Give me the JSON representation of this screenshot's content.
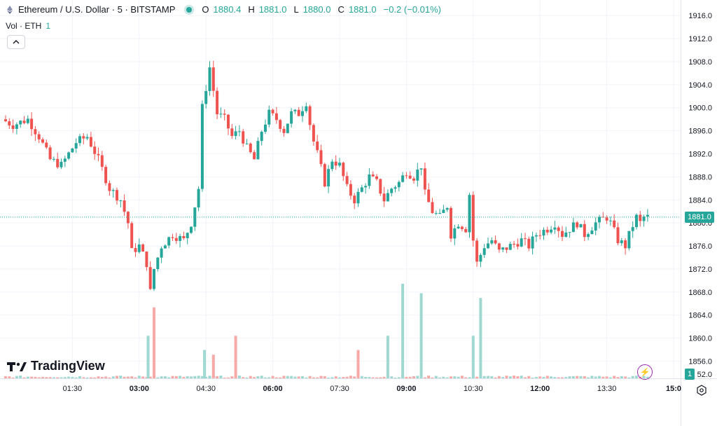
{
  "header": {
    "symbol_title": "Ethereum / U.S. Dollar · 5 · BITSTAMP",
    "open_label": "O",
    "open_value": "1880.4",
    "high_label": "H",
    "high_value": "1881.0",
    "low_label": "L",
    "low_value": "1880.0",
    "close_label": "C",
    "close_value": "1881.0",
    "change": "−0.2 (−0.01%)"
  },
  "volume": {
    "label": "Vol · ETH",
    "value": "1"
  },
  "logo_text": "TradingView",
  "price_tag": "1881.0",
  "vol_tag": "1",
  "volume_axis_label": "52.0",
  "colors": {
    "up": "#26a69a",
    "down": "#ef5350",
    "up_vol": "#9fd8d1",
    "down_vol": "#f7a9a7",
    "accent": "#9c27b0"
  },
  "icons": [
    "ethereum-icon",
    "chevron-up-icon",
    "tradingview-logo-icon",
    "flash-icon",
    "settings-icon"
  ],
  "chart_data": {
    "type": "candlestick",
    "y_ticks": [
      "1916.0",
      "1912.0",
      "1908.0",
      "1904.0",
      "1900.0",
      "1896.0",
      "1892.0",
      "1888.0",
      "1884.0",
      "1880.0",
      "1876.0",
      "1872.0",
      "1868.0",
      "1864.0",
      "1860.0",
      "1856.0"
    ],
    "y_tick_values": [
      1916,
      1912,
      1908,
      1904,
      1900,
      1896,
      1892,
      1888,
      1884,
      1880,
      1876,
      1872,
      1868,
      1864,
      1860,
      1856
    ],
    "ylim": [
      1853.5,
      1917
    ],
    "x_ticks": [
      {
        "label": "01:30",
        "major": false,
        "t": 90
      },
      {
        "label": "03:00",
        "major": true,
        "t": 180
      },
      {
        "label": "04:30",
        "major": false,
        "t": 270
      },
      {
        "label": "06:00",
        "major": true,
        "t": 360
      },
      {
        "label": "07:30",
        "major": false,
        "t": 450
      },
      {
        "label": "09:00",
        "major": true,
        "t": 540
      },
      {
        "label": "10:30",
        "major": false,
        "t": 630
      },
      {
        "label": "12:00",
        "major": true,
        "t": 720
      },
      {
        "label": "13:30",
        "major": false,
        "t": 810
      },
      {
        "label": "15:0",
        "major": true,
        "t": 900
      }
    ],
    "x_minutes_range": [
      0,
      900
    ],
    "last_price": 1881.0,
    "key_points": [
      {
        "t": 0,
        "p": 1898
      },
      {
        "t": 15,
        "p": 1897
      },
      {
        "t": 35,
        "p": 1898
      },
      {
        "t": 50,
        "p": 1895
      },
      {
        "t": 65,
        "p": 1891
      },
      {
        "t": 80,
        "p": 1890
      },
      {
        "t": 100,
        "p": 1894
      },
      {
        "t": 115,
        "p": 1895
      },
      {
        "t": 130,
        "p": 1891
      },
      {
        "t": 145,
        "p": 1886
      },
      {
        "t": 160,
        "p": 1884
      },
      {
        "t": 170,
        "p": 1880
      },
      {
        "t": 175,
        "p": 1875
      },
      {
        "t": 185,
        "p": 1876
      },
      {
        "t": 195,
        "p": 1873
      },
      {
        "t": 200,
        "p": 1868
      },
      {
        "t": 205,
        "p": 1872
      },
      {
        "t": 215,
        "p": 1876
      },
      {
        "t": 230,
        "p": 1878
      },
      {
        "t": 245,
        "p": 1877
      },
      {
        "t": 255,
        "p": 1880
      },
      {
        "t": 265,
        "p": 1886
      },
      {
        "t": 270,
        "p": 1900
      },
      {
        "t": 280,
        "p": 1907
      },
      {
        "t": 290,
        "p": 1899
      },
      {
        "t": 300,
        "p": 1898
      },
      {
        "t": 310,
        "p": 1895
      },
      {
        "t": 320,
        "p": 1896
      },
      {
        "t": 330,
        "p": 1893
      },
      {
        "t": 340,
        "p": 1891
      },
      {
        "t": 350,
        "p": 1896
      },
      {
        "t": 360,
        "p": 1899
      },
      {
        "t": 370,
        "p": 1898
      },
      {
        "t": 380,
        "p": 1896
      },
      {
        "t": 390,
        "p": 1899
      },
      {
        "t": 400,
        "p": 1899
      },
      {
        "t": 410,
        "p": 1901
      },
      {
        "t": 418,
        "p": 1895
      },
      {
        "t": 425,
        "p": 1892
      },
      {
        "t": 435,
        "p": 1887
      },
      {
        "t": 445,
        "p": 1891
      },
      {
        "t": 455,
        "p": 1890
      },
      {
        "t": 465,
        "p": 1886
      },
      {
        "t": 475,
        "p": 1884
      },
      {
        "t": 485,
        "p": 1886
      },
      {
        "t": 495,
        "p": 1888
      },
      {
        "t": 505,
        "p": 1887
      },
      {
        "t": 515,
        "p": 1884
      },
      {
        "t": 525,
        "p": 1886
      },
      {
        "t": 535,
        "p": 1887
      },
      {
        "t": 545,
        "p": 1889
      },
      {
        "t": 555,
        "p": 1888
      },
      {
        "t": 565,
        "p": 1890
      },
      {
        "t": 570,
        "p": 1885
      },
      {
        "t": 580,
        "p": 1882
      },
      {
        "t": 590,
        "p": 1881
      },
      {
        "t": 600,
        "p": 1883
      },
      {
        "t": 605,
        "p": 1878
      },
      {
        "t": 615,
        "p": 1880
      },
      {
        "t": 625,
        "p": 1879
      },
      {
        "t": 630,
        "p": 1885
      },
      {
        "t": 635,
        "p": 1877
      },
      {
        "t": 640,
        "p": 1873
      },
      {
        "t": 650,
        "p": 1876
      },
      {
        "t": 660,
        "p": 1877
      },
      {
        "t": 670,
        "p": 1875
      },
      {
        "t": 685,
        "p": 1876
      },
      {
        "t": 700,
        "p": 1877
      },
      {
        "t": 710,
        "p": 1876
      },
      {
        "t": 720,
        "p": 1878
      },
      {
        "t": 735,
        "p": 1879
      },
      {
        "t": 745,
        "p": 1880
      },
      {
        "t": 755,
        "p": 1878
      },
      {
        "t": 765,
        "p": 1879
      },
      {
        "t": 775,
        "p": 1880
      },
      {
        "t": 785,
        "p": 1878
      },
      {
        "t": 800,
        "p": 1880
      },
      {
        "t": 815,
        "p": 1881
      },
      {
        "t": 820,
        "p": 1880
      },
      {
        "t": 830,
        "p": 1877
      },
      {
        "t": 840,
        "p": 1876
      },
      {
        "t": 848,
        "p": 1879
      },
      {
        "t": 855,
        "p": 1881
      },
      {
        "t": 860,
        "p": 1880
      },
      {
        "t": 865,
        "p": 1881
      }
    ],
    "volume_spikes": [
      {
        "t": 192,
        "v": 0.45,
        "up": true
      },
      {
        "t": 200,
        "v": 0.75,
        "up": false
      },
      {
        "t": 268,
        "v": 0.3,
        "up": true
      },
      {
        "t": 280,
        "v": 0.25,
        "up": false
      },
      {
        "t": 310,
        "v": 0.45,
        "up": false
      },
      {
        "t": 475,
        "v": 0.3,
        "up": false
      },
      {
        "t": 515,
        "v": 0.45,
        "up": true
      },
      {
        "t": 535,
        "v": 1.0,
        "up": true
      },
      {
        "t": 560,
        "v": 0.9,
        "up": true
      },
      {
        "t": 630,
        "v": 0.45,
        "up": true
      },
      {
        "t": 640,
        "v": 0.85,
        "up": true
      }
    ]
  }
}
